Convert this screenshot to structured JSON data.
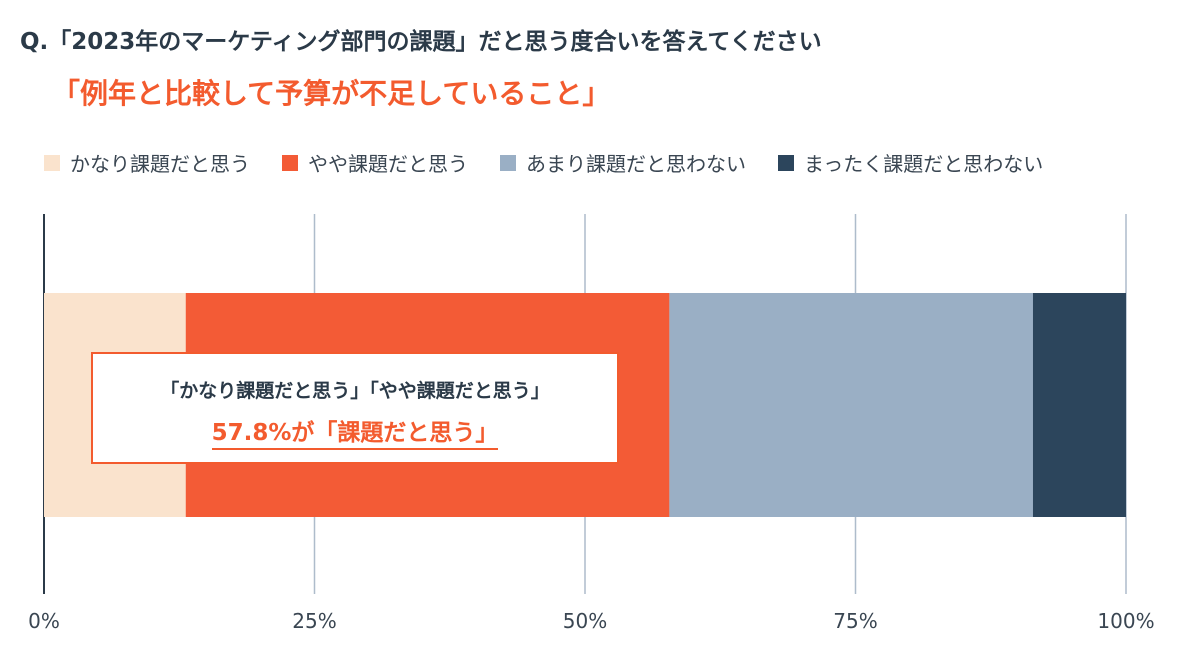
{
  "header": {
    "question": "Q.「2023年のマーケティング部門の課題」だと思う度合いを答えてください",
    "subject": "「例年と比較して予算が不足していること」"
  },
  "callout": {
    "line1": "「かなり課題だと思う」「やや課題だと思う」",
    "line2": "57.8%が「課題だと思う」"
  },
  "chart_data": {
    "type": "bar",
    "orientation": "horizontal",
    "stacked": true,
    "categories": [
      ""
    ],
    "series": [
      {
        "name": "かなり課題だと思う",
        "values": [
          13.1
        ],
        "color": "#fae3cd"
      },
      {
        "name": "やや課題だと思う",
        "values": [
          44.7
        ],
        "color": "#f35b36"
      },
      {
        "name": "あまり課題だと思わない",
        "values": [
          33.6
        ],
        "color": "#9aafc5"
      },
      {
        "name": "まったく課題だと思わない",
        "values": [
          8.6
        ],
        "color": "#2c455c"
      }
    ],
    "xlim": [
      0,
      100
    ],
    "xticks": [
      0,
      25,
      50,
      75,
      100
    ],
    "xtick_labels": [
      "0%",
      "25%",
      "50%",
      "75%",
      "100%"
    ],
    "grid": true,
    "legend_position": "top-left"
  }
}
